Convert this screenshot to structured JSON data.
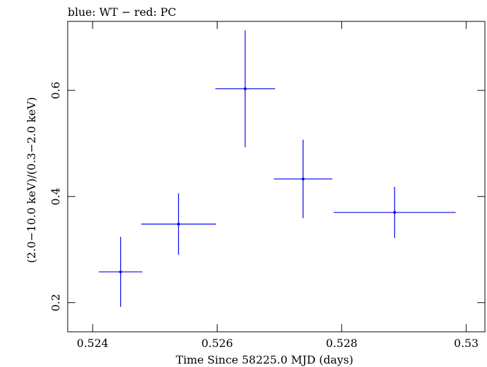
{
  "chart_data": {
    "type": "scatter",
    "title": "blue: WT − red: PC",
    "xlabel": "Time Since 58225.0 MJD (days)",
    "ylabel": "(2.0−10.0 keV)/(0.3−2.0 keV)",
    "xlim": [
      0.5236,
      0.5303
    ],
    "ylim": [
      0.145,
      0.73
    ],
    "x_ticks": [
      {
        "value": 0.524,
        "label": "0.524"
      },
      {
        "value": 0.526,
        "label": "0.526"
      },
      {
        "value": 0.528,
        "label": "0.528"
      },
      {
        "value": 0.53,
        "label": "0.53"
      }
    ],
    "y_ticks": [
      {
        "value": 0.2,
        "label": "0.2"
      },
      {
        "value": 0.4,
        "label": "0.4"
      },
      {
        "value": 0.6,
        "label": "0.6"
      }
    ],
    "grid": false,
    "series": [
      {
        "color": "#0000ee",
        "points": [
          {
            "x": 0.52445,
            "xerr": 0.00035,
            "y": 0.258,
            "yerr": 0.066
          },
          {
            "x": 0.52538,
            "xerr": 0.0006,
            "y": 0.348,
            "yerr": 0.058
          },
          {
            "x": 0.52645,
            "xerr": 0.00048,
            "y": 0.603,
            "yerr": 0.11
          },
          {
            "x": 0.52738,
            "xerr": 0.00047,
            "y": 0.433,
            "yerr": 0.074
          },
          {
            "x": 0.52885,
            "xerr": 0.00098,
            "y": 0.37,
            "yerr": 0.048
          }
        ]
      }
    ]
  }
}
